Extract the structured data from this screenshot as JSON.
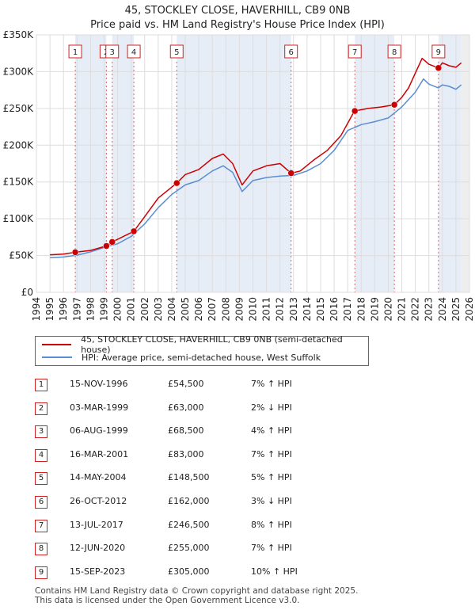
{
  "chart_data": {
    "type": "line",
    "title": "45, STOCKLEY CLOSE, HAVERHILL, CB9 0NB",
    "subtitle": "Price paid vs. HM Land Registry's House Price Index (HPI)",
    "xlim": [
      1994,
      2026
    ],
    "ylim": [
      0,
      350000
    ],
    "y_ticks": [
      0,
      50000,
      100000,
      150000,
      200000,
      250000,
      300000,
      350000
    ],
    "y_tick_labels": [
      "£0",
      "£50K",
      "£100K",
      "£150K",
      "£200K",
      "£250K",
      "£300K",
      "£350K"
    ],
    "x_ticks": [
      1994,
      1995,
      1996,
      1997,
      1998,
      1999,
      2000,
      2001,
      2002,
      2003,
      2004,
      2005,
      2006,
      2007,
      2008,
      2009,
      2010,
      2011,
      2012,
      2013,
      2014,
      2015,
      2016,
      2017,
      2018,
      2019,
      2020,
      2021,
      2022,
      2023,
      2024,
      2025,
      2026
    ],
    "x_tick_labels": [
      "1994",
      "1995",
      "1996",
      "1997",
      "1998",
      "1999",
      "2000",
      "2001",
      "2002",
      "2003",
      "2004",
      "2005",
      "2006",
      "2007",
      "2008",
      "2009",
      "2010",
      "2011",
      "2012",
      "2013",
      "2014",
      "2015",
      "2016",
      "2017",
      "2018",
      "2019",
      "2020",
      "2021",
      "2022",
      "2023",
      "2024",
      "2025",
      "2026"
    ],
    "grid": true,
    "data_range": [
      1995.0,
      2025.4
    ],
    "series": [
      {
        "name": "45, STOCKLEY CLOSE, HAVERHILL, CB9 0NB (semi-detached house)",
        "color": "#cc0000",
        "x": [
          1995.0,
          1996.0,
          1996.87,
          1998.0,
          1999.17,
          1999.6,
          2000.0,
          2001.2,
          2002.0,
          2003.0,
          2004.37,
          2005.0,
          2006.0,
          2007.0,
          2007.8,
          2008.5,
          2009.2,
          2010.0,
          2011.0,
          2012.0,
          2012.82,
          2013.5,
          2014.5,
          2015.5,
          2016.5,
          2017.5,
          2018.5,
          2019.5,
          2020.45,
          2021.0,
          2021.5,
          2022.0,
          2022.5,
          2023.0,
          2023.71,
          2024.0,
          2024.5,
          2025.0,
          2025.4
        ],
        "values": [
          51000,
          52000,
          54500,
          57000,
          63000,
          68500,
          72000,
          83000,
          103000,
          128000,
          148500,
          160000,
          167000,
          182000,
          188000,
          175000,
          146000,
          165000,
          172000,
          175000,
          162000,
          165000,
          180000,
          193000,
          213000,
          246500,
          250000,
          252000,
          255000,
          265000,
          278000,
          298000,
          318000,
          310000,
          305000,
          312000,
          308000,
          306000,
          312000
        ]
      },
      {
        "name": "HPI: Average price, semi-detached house, West Suffolk",
        "color": "#5a8ed0",
        "x": [
          1995.0,
          1996.0,
          1997.0,
          1998.0,
          1999.0,
          2000.0,
          2001.0,
          2002.0,
          2003.0,
          2004.0,
          2005.0,
          2006.0,
          2007.0,
          2007.8,
          2008.5,
          2009.2,
          2010.0,
          2011.0,
          2012.0,
          2013.0,
          2014.0,
          2015.0,
          2016.0,
          2017.0,
          2018.0,
          2019.0,
          2020.0,
          2021.0,
          2022.0,
          2022.6,
          2023.0,
          2023.7,
          2024.0,
          2024.5,
          2025.0,
          2025.4
        ],
        "values": [
          47000,
          48000,
          50500,
          55000,
          61000,
          66000,
          76000,
          93000,
          115000,
          133000,
          146000,
          152000,
          165000,
          172000,
          163000,
          137000,
          152000,
          156000,
          158000,
          159000,
          165000,
          175000,
          193000,
          220000,
          228000,
          232000,
          237000,
          252000,
          272000,
          290000,
          283000,
          278000,
          282000,
          280000,
          276000,
          282000
        ]
      }
    ],
    "sales": [
      {
        "n": "1",
        "x": 1996.87,
        "y": 54500
      },
      {
        "n": "2",
        "x": 1999.17,
        "y": 63000
      },
      {
        "n": "3",
        "x": 1999.6,
        "y": 68500
      },
      {
        "n": "4",
        "x": 2001.2,
        "y": 83000
      },
      {
        "n": "5",
        "x": 2004.37,
        "y": 148500
      },
      {
        "n": "6",
        "x": 2012.82,
        "y": 162000
      },
      {
        "n": "7",
        "x": 2017.53,
        "y": 246500
      },
      {
        "n": "8",
        "x": 2020.45,
        "y": 255000
      },
      {
        "n": "9",
        "x": 2023.71,
        "y": 305000
      }
    ],
    "shaded_periods": [
      [
        1996.87,
        1999.17
      ],
      [
        1999.6,
        2001.2
      ],
      [
        2004.37,
        2012.82
      ],
      [
        2017.53,
        2020.45
      ],
      [
        2023.71,
        2025.4
      ]
    ]
  },
  "legend": {
    "property_label": "45, STOCKLEY CLOSE, HAVERHILL, CB9 0NB (semi-detached house)",
    "hpi_label": "HPI: Average price, semi-detached house, West Suffolk",
    "property_color": "#cc0000",
    "hpi_color": "#5a8ed0"
  },
  "transactions": [
    {
      "n": "1",
      "date": "15-NOV-1996",
      "price": "£54,500",
      "hpi": "7% ↑ HPI"
    },
    {
      "n": "2",
      "date": "03-MAR-1999",
      "price": "£63,000",
      "hpi": "2% ↓ HPI"
    },
    {
      "n": "3",
      "date": "06-AUG-1999",
      "price": "£68,500",
      "hpi": "4% ↑ HPI"
    },
    {
      "n": "4",
      "date": "16-MAR-2001",
      "price": "£83,000",
      "hpi": "7% ↑ HPI"
    },
    {
      "n": "5",
      "date": "14-MAY-2004",
      "price": "£148,500",
      "hpi": "5% ↑ HPI"
    },
    {
      "n": "6",
      "date": "26-OCT-2012",
      "price": "£162,000",
      "hpi": "3% ↓ HPI"
    },
    {
      "n": "7",
      "date": "13-JUL-2017",
      "price": "£246,500",
      "hpi": "8% ↑ HPI"
    },
    {
      "n": "8",
      "date": "12-JUN-2020",
      "price": "£255,000",
      "hpi": "7% ↑ HPI"
    },
    {
      "n": "9",
      "date": "15-SEP-2023",
      "price": "£305,000",
      "hpi": "10% ↑ HPI"
    }
  ],
  "footer": {
    "line1": "Contains HM Land Registry data © Crown copyright and database right 2025.",
    "line2": "This data is licensed under the Open Government Licence v3.0."
  }
}
